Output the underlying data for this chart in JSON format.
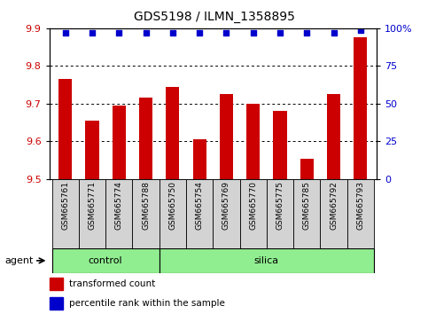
{
  "title": "GDS5198 / ILMN_1358895",
  "samples": [
    "GSM665761",
    "GSM665771",
    "GSM665774",
    "GSM665788",
    "GSM665750",
    "GSM665754",
    "GSM665769",
    "GSM665770",
    "GSM665775",
    "GSM665785",
    "GSM665792",
    "GSM665793"
  ],
  "transformed_count": [
    9.765,
    9.655,
    9.695,
    9.715,
    9.745,
    9.605,
    9.725,
    9.7,
    9.68,
    9.553,
    9.725,
    9.875
  ],
  "percentile_rank": [
    97,
    97,
    97,
    97,
    97,
    97,
    97,
    97,
    97,
    97,
    97,
    99
  ],
  "ylim_left": [
    9.5,
    9.9
  ],
  "ylim_right": [
    0,
    100
  ],
  "yticks_left": [
    9.5,
    9.6,
    9.7,
    9.8,
    9.9
  ],
  "yticks_right": [
    0,
    25,
    50,
    75,
    100
  ],
  "ytick_labels_right": [
    "0",
    "25",
    "50",
    "75",
    "100%"
  ],
  "bar_color": "#cc0000",
  "dot_color": "#0000cc",
  "n_control": 4,
  "n_silica": 8,
  "control_label": "control",
  "silica_label": "silica",
  "agent_label": "agent",
  "legend_count_label": "transformed count",
  "legend_pct_label": "percentile rank within the sample",
  "tick_label_color_left": "#cc0000",
  "tick_label_color_right": "#0000cc",
  "bg_group_bar": "#90ee90",
  "label_bg": "#d3d3d3"
}
